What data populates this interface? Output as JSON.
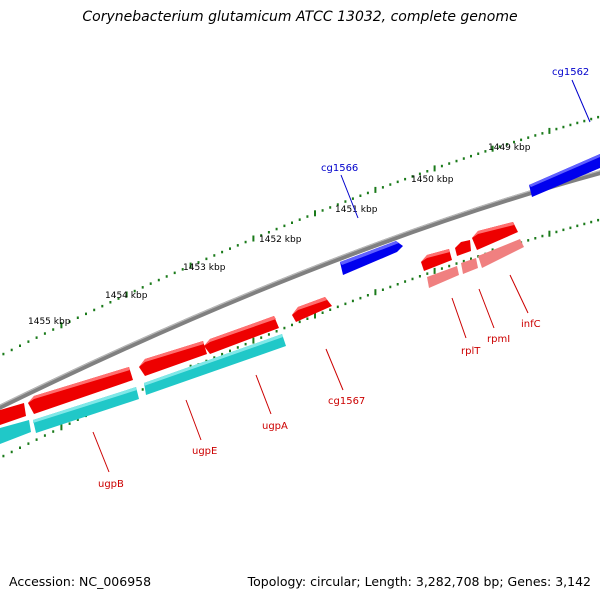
{
  "title": "Corynebacterium glutamicum ATCC 13032, complete genome",
  "footer": {
    "accession": "Accession: NC_006958",
    "summary": "Topology: circular; Length: 3,282,708 bp; Genes: 3,142"
  },
  "colors": {
    "backbone": "#808080",
    "tick": "#1a7a1a",
    "forward_gene": "#0000ee",
    "reverse_gene": "#ee0000",
    "reverse_feature_light": "#f08080",
    "reverse_cds": "#20c8c8",
    "label_blue": "#0000cc",
    "label_red": "#cc0000"
  },
  "scale_labels": [
    "1449 kbp",
    "1450 kbp",
    "1451 kbp",
    "1452 kbp",
    "1453 kbp",
    "1454 kbp",
    "1455 kbp"
  ],
  "gene_labels": {
    "cg1562": "cg1562",
    "cg1566": "cg1566",
    "cg1567": "cg1567",
    "infC": "infC",
    "rpmI": "rpmI",
    "rplT": "rplT",
    "ugpA": "ugpA",
    "ugpE": "ugpE",
    "ugpB": "ugpB"
  }
}
